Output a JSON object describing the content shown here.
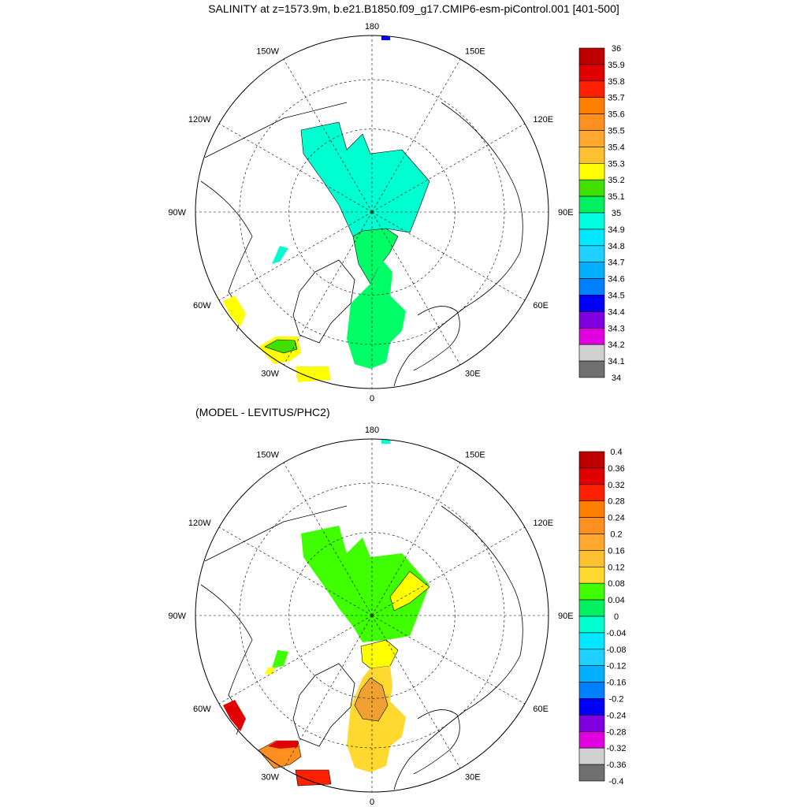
{
  "figure": {
    "title": "SALINITY at z=1573.9m, b.e21.B1850.f09_g17.CMIP6-esm-piControl.001 [401-500]",
    "subtitle": "(MODEL - LEVITUS/PHC2)"
  },
  "longitude_labels": [
    "180",
    "150E",
    "120E",
    "90E",
    "60E",
    "30E",
    "0",
    "30W",
    "60W",
    "90W",
    "120W",
    "150W"
  ],
  "panels": [
    {
      "id": "model",
      "colorbar": {
        "levels": [
          "36",
          "35.9",
          "35.8",
          "35.7",
          "35.6",
          "35.5",
          "35.4",
          "35.3",
          "35.2",
          "35.1",
          "35",
          "34.9",
          "34.8",
          "34.7",
          "34.6",
          "34.5",
          "34.4",
          "34.3",
          "34.2",
          "34.1",
          "34"
        ],
        "colors": [
          "#c00000",
          "#e00000",
          "#ff2000",
          "#ff8000",
          "#ff9020",
          "#ffa830",
          "#ffc030",
          "#ffff00",
          "#40e000",
          "#00f060",
          "#00ffe0",
          "#00e8ff",
          "#20d0ff",
          "#00b0ff",
          "#0080ff",
          "#0000ff",
          "#8000e0",
          "#e000e0",
          "#d0d0d0",
          "#707070"
        ]
      },
      "regions": [
        {
          "name": "central-arctic",
          "color": "#00ffd0"
        },
        {
          "name": "fram-strait",
          "color": "#00ff66"
        },
        {
          "name": "nordic-seas",
          "color": "#00ff66"
        },
        {
          "name": "baffin-bay",
          "color": "#00ffd0"
        },
        {
          "name": "labrador-sea",
          "color": "#ffff00"
        },
        {
          "name": "irminger-sea",
          "color": "#ffff00"
        },
        {
          "name": "irminger-core",
          "color": "#40e000"
        },
        {
          "name": "iceland-basin",
          "color": "#ffff00"
        },
        {
          "name": "bering-dot",
          "color": "#0000ff"
        }
      ]
    },
    {
      "id": "difference",
      "colorbar": {
        "levels": [
          "0.4",
          "0.36",
          "0.32",
          "0.28",
          "0.24",
          "0.2",
          "0.16",
          "0.12",
          "0.08",
          "0.04",
          "0",
          "-0.04",
          "-0.08",
          "-0.12",
          "-0.16",
          "-0.2",
          "-0.24",
          "-0.28",
          "-0.32",
          "-0.36",
          "-0.4"
        ],
        "colors": [
          "#c00000",
          "#e00000",
          "#ff2000",
          "#ff8000",
          "#ff9020",
          "#ffa830",
          "#ffc030",
          "#ffd830",
          "#40ff00",
          "#00f060",
          "#00ffd0",
          "#00e8ff",
          "#20d0ff",
          "#00b0ff",
          "#0080ff",
          "#0000ff",
          "#8000e0",
          "#e000e0",
          "#d0d0d0",
          "#707070"
        ]
      },
      "regions": [
        {
          "name": "central-arctic",
          "color": "#40ff00"
        },
        {
          "name": "siberian-patch",
          "color": "#ffff00"
        },
        {
          "name": "fram-strait",
          "color": "#ffff00"
        },
        {
          "name": "nordic-seas",
          "color": "#ffd830"
        },
        {
          "name": "greenland-sea-core",
          "color": "#f0a030"
        },
        {
          "name": "baffin-bay",
          "color": "#40ff00"
        },
        {
          "name": "baffin-south",
          "color": "#ffff00"
        },
        {
          "name": "labrador-sea",
          "color": "#e00000"
        },
        {
          "name": "irminger-sea",
          "color": "#ff9020"
        },
        {
          "name": "irminger-rim",
          "color": "#e00000"
        },
        {
          "name": "iceland-basin",
          "color": "#ff2000"
        },
        {
          "name": "bering-dot",
          "color": "#00ffd0"
        }
      ]
    }
  ]
}
